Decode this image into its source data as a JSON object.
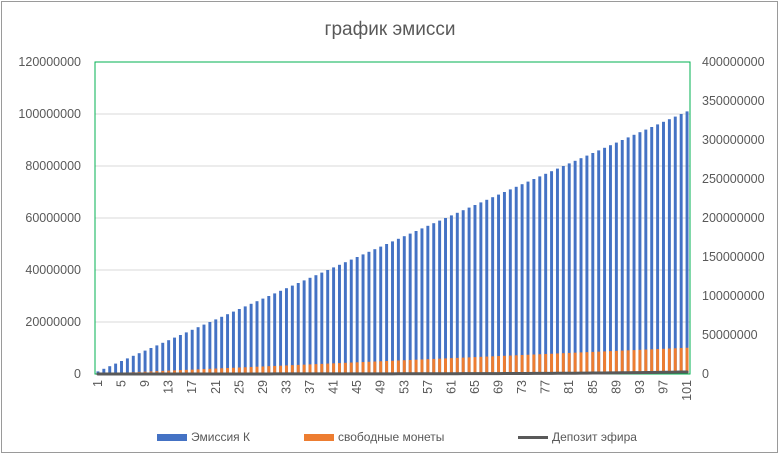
{
  "chart_data": {
    "type": "bar",
    "title": "график эмисси",
    "x": {
      "start": 1,
      "end": 101,
      "tick_labels": [
        "1",
        "5",
        "9",
        "13",
        "17",
        "21",
        "25",
        "29",
        "33",
        "37",
        "41",
        "45",
        "49",
        "53",
        "57",
        "61",
        "65",
        "69",
        "73",
        "77",
        "81",
        "85",
        "89",
        "93",
        "97",
        "101"
      ]
    },
    "y_left": {
      "min": 0,
      "max": 120000000,
      "tick_labels": [
        "0",
        "20000000",
        "40000000",
        "60000000",
        "80000000",
        "100000000",
        "120000000"
      ]
    },
    "y_right": {
      "min": 0,
      "max": 400000000,
      "tick_labels": [
        "0",
        "50000000",
        "100000000",
        "150000000",
        "200000000",
        "250000000",
        "300000000",
        "350000000",
        "400000000"
      ]
    },
    "series": [
      {
        "name": "Эмиссия К",
        "type": "bar",
        "axis": "left",
        "color": "#4472C4",
        "values": [
          1000000,
          2000000,
          3000000,
          4000000,
          5000000,
          6000000,
          7000000,
          8000000,
          9000000,
          10000000,
          11000000,
          12000000,
          13000000,
          14000000,
          15000000,
          16000000,
          17000000,
          18000000,
          19000000,
          20000000,
          21000000,
          22000000,
          23000000,
          24000000,
          25000000,
          26000000,
          27000000,
          28000000,
          29000000,
          30000000,
          31000000,
          32000000,
          33000000,
          34000000,
          35000000,
          36000000,
          37000000,
          38000000,
          39000000,
          40000000,
          41000000,
          42000000,
          43000000,
          44000000,
          45000000,
          46000000,
          47000000,
          48000000,
          49000000,
          50000000,
          51000000,
          52000000,
          53000000,
          54000000,
          55000000,
          56000000,
          57000000,
          58000000,
          59000000,
          60000000,
          61000000,
          62000000,
          63000000,
          64000000,
          65000000,
          66000000,
          67000000,
          68000000,
          69000000,
          70000000,
          71000000,
          72000000,
          73000000,
          74000000,
          75000000,
          76000000,
          77000000,
          78000000,
          79000000,
          80000000,
          81000000,
          82000000,
          83000000,
          84000000,
          85000000,
          86000000,
          87000000,
          88000000,
          89000000,
          90000000,
          91000000,
          92000000,
          93000000,
          94000000,
          95000000,
          96000000,
          97000000,
          98000000,
          99000000,
          100000000,
          101000000
        ]
      },
      {
        "name": "свободные монеты",
        "type": "bar",
        "axis": "left",
        "color": "#ED7D31",
        "values": [
          100000,
          200000,
          300000,
          400000,
          500000,
          600000,
          700000,
          800000,
          900000,
          1000000,
          1100000,
          1200000,
          1300000,
          1400000,
          1500000,
          1600000,
          1700000,
          1800000,
          1900000,
          2000000,
          2100000,
          2200000,
          2300000,
          2400000,
          2500000,
          2600000,
          2700000,
          2800000,
          2900000,
          3000000,
          3100000,
          3200000,
          3300000,
          3400000,
          3500000,
          3600000,
          3700000,
          3800000,
          3900000,
          4000000,
          4100000,
          4200000,
          4300000,
          4400000,
          4500000,
          4600000,
          4700000,
          4800000,
          4900000,
          5000000,
          5100000,
          5200000,
          5300000,
          5400000,
          5500000,
          5600000,
          5700000,
          5800000,
          5900000,
          6000000,
          6100000,
          6200000,
          6300000,
          6400000,
          6500000,
          6600000,
          6700000,
          6800000,
          6900000,
          7000000,
          7100000,
          7200000,
          7300000,
          7400000,
          7500000,
          7600000,
          7700000,
          7800000,
          7900000,
          8000000,
          8100000,
          8200000,
          8300000,
          8400000,
          8500000,
          8600000,
          8700000,
          8800000,
          8900000,
          9000000,
          9100000,
          9200000,
          9300000,
          9400000,
          9500000,
          9600000,
          9700000,
          9800000,
          9900000,
          10000000,
          10100000
        ]
      },
      {
        "name": "Депозит эфира",
        "type": "line",
        "axis": "right",
        "color": "#595959",
        "values": [
          20000,
          21000,
          22000,
          23000,
          24000,
          25000,
          27000,
          28000,
          29000,
          31000,
          32000,
          34000,
          36000,
          37000,
          39000,
          41000,
          43000,
          46000,
          48000,
          50000,
          53000,
          55000,
          58000,
          61000,
          64000,
          67000,
          71000,
          74000,
          78000,
          82000,
          86000,
          90000,
          95000,
          100000,
          105000,
          110000,
          115000,
          121000,
          127000,
          134000,
          140000,
          147000,
          155000,
          163000,
          171000,
          179000,
          188000,
          198000,
          208000,
          218000,
          229000,
          241000,
          253000,
          265000,
          279000,
          293000,
          307000,
          323000,
          339000,
          356000,
          374000,
          393000,
          412000,
          433000,
          455000,
          477000,
          501000,
          526000,
          553000,
          580000,
          609000,
          640000,
          672000,
          705000,
          741000,
          778000,
          817000,
          858000,
          900000,
          945000,
          993000,
          1042000,
          1094000,
          1149000,
          1207000,
          1267000,
          1331000,
          1397000,
          1467000,
          1540000,
          1617000,
          1698000,
          1783000,
          1872000,
          1966000,
          2064000,
          2167000,
          2276000,
          2390000,
          2509000,
          2634000
        ]
      }
    ],
    "legend": {
      "position": "bottom",
      "items": [
        "Эмиссия К",
        "свободные монеты",
        "Депозит эфира"
      ]
    },
    "grid": {
      "horizontal": true,
      "color": "#d9d9d9"
    },
    "plot_border_color": "#00B050"
  }
}
